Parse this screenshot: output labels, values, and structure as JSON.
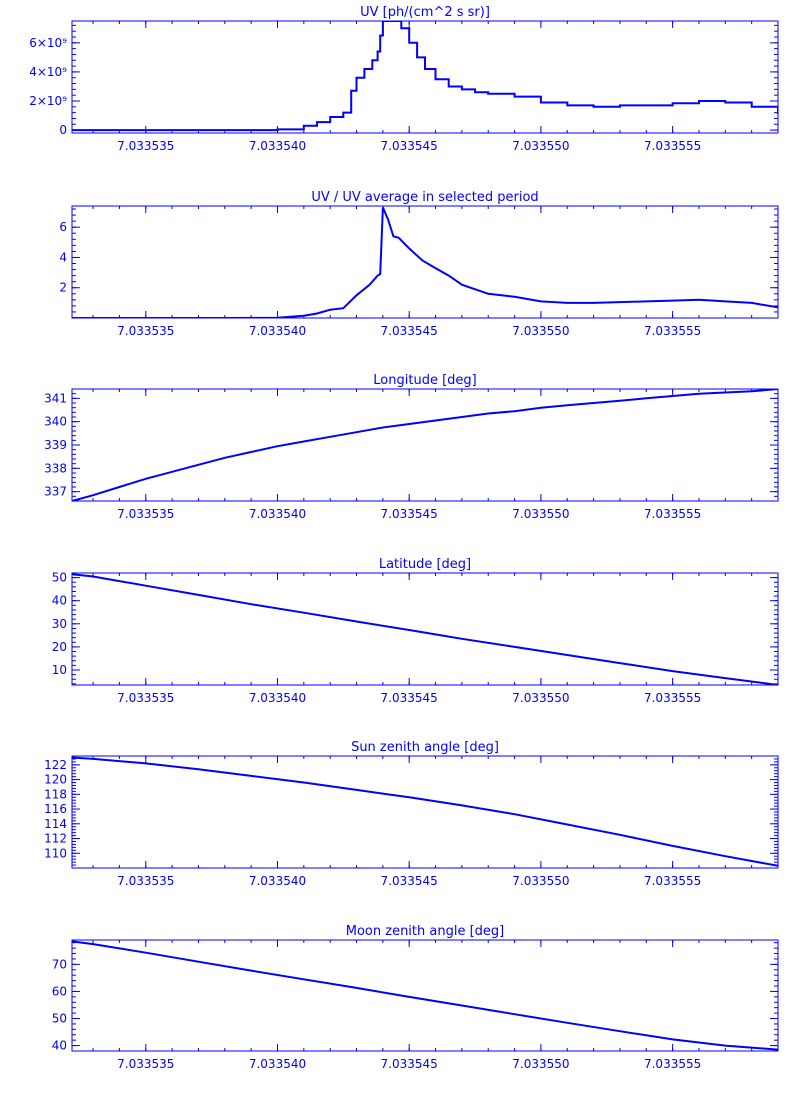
{
  "colors": {
    "line": "#0000ff",
    "background": "#ffffff"
  },
  "chart_data": [
    {
      "type": "line",
      "title": "UV [ph/(cm^2 s sr)]",
      "xlabel": "",
      "ylabel": "",
      "xlim": [
        7.0335322,
        7.033559
      ],
      "ylim": [
        -200000000,
        7500000000
      ],
      "x_ticks": [
        7.033535,
        7.03354,
        7.033545,
        7.03355,
        7.033555
      ],
      "x_tick_labels": [
        "7.033535",
        "7.033540",
        "7.033545",
        "7.033550",
        "7.033555"
      ],
      "y_ticks": [
        0,
        2000000000,
        4000000000,
        6000000000
      ],
      "y_tick_labels": [
        "0",
        "2×10⁹",
        "4×10⁹",
        "6×10⁹"
      ],
      "line_style": "step",
      "series": [
        {
          "x": [
            7.0335322,
            7.033538,
            7.03354,
            7.033541,
            7.0335415,
            7.033542,
            7.0335425,
            7.0335428,
            7.033543,
            7.0335433,
            7.0335436,
            7.0335438,
            7.0335439,
            7.033544,
            7.0335443,
            7.0335445,
            7.0335447,
            7.033545,
            7.0335453,
            7.0335456,
            7.033546,
            7.0335465,
            7.033547,
            7.0335475,
            7.033548,
            7.033549,
            7.03355,
            7.033551,
            7.033552,
            7.033553,
            7.033554,
            7.033555,
            7.033556,
            7.033557,
            7.033558,
            7.033559
          ],
          "y": [
            0,
            0,
            50000000,
            300000000,
            550000000,
            900000000,
            1200000000,
            2700000000,
            3600000000,
            4200000000,
            4800000000,
            5400000000,
            6500000000,
            7500000000,
            7500000000,
            7500000000,
            7000000000,
            6000000000,
            5000000000,
            4200000000,
            3500000000,
            3000000000,
            2800000000,
            2600000000,
            2500000000,
            2300000000,
            1900000000,
            1700000000,
            1600000000,
            1700000000,
            1700000000,
            1850000000,
            2000000000,
            1900000000,
            1600000000,
            1100000000
          ]
        }
      ],
      "grid": false
    },
    {
      "type": "line",
      "title": "UV / UV average in selected period",
      "xlabel": "",
      "ylabel": "",
      "xlim": [
        7.0335322,
        7.033559
      ],
      "ylim": [
        0,
        7.4
      ],
      "x_ticks": [
        7.033535,
        7.03354,
        7.033545,
        7.03355,
        7.033555
      ],
      "x_tick_labels": [
        "7.033535",
        "7.033540",
        "7.033545",
        "7.033550",
        "7.033555"
      ],
      "y_ticks": [
        2,
        4,
        6
      ],
      "y_tick_labels": [
        "2",
        "4",
        "6"
      ],
      "series": [
        {
          "x": [
            7.0335322,
            7.033538,
            7.03354,
            7.033541,
            7.0335415,
            7.033542,
            7.0335425,
            7.033543,
            7.0335435,
            7.0335438,
            7.0335439,
            7.033544,
            7.0335442,
            7.0335444,
            7.0335446,
            7.033545,
            7.0335455,
            7.033546,
            7.0335465,
            7.033547,
            7.033548,
            7.033549,
            7.03355,
            7.033551,
            7.033552,
            7.033553,
            7.033554,
            7.033555,
            7.033556,
            7.033557,
            7.033558,
            7.033559
          ],
          "y": [
            0,
            0,
            0.02,
            0.15,
            0.3,
            0.55,
            0.65,
            1.5,
            2.2,
            2.8,
            2.9,
            7.3,
            6.5,
            5.4,
            5.3,
            4.6,
            3.8,
            3.3,
            2.8,
            2.2,
            1.6,
            1.4,
            1.1,
            1.0,
            1.0,
            1.05,
            1.1,
            1.15,
            1.2,
            1.1,
            1.0,
            0.7
          ]
        }
      ],
      "grid": false
    },
    {
      "type": "line",
      "title": "Longitude [deg]",
      "xlabel": "",
      "ylabel": "",
      "xlim": [
        7.0335322,
        7.033559
      ],
      "ylim": [
        336.6,
        341.4
      ],
      "x_ticks": [
        7.033535,
        7.03354,
        7.033545,
        7.03355,
        7.033555
      ],
      "x_tick_labels": [
        "7.033535",
        "7.033540",
        "7.033545",
        "7.033550",
        "7.033555"
      ],
      "y_ticks": [
        337,
        338,
        339,
        340,
        341
      ],
      "y_tick_labels": [
        "337",
        "338",
        "339",
        "340",
        "341"
      ],
      "series": [
        {
          "x": [
            7.0335322,
            7.033533,
            7.033534,
            7.033535,
            7.033536,
            7.033537,
            7.033538,
            7.033539,
            7.03354,
            7.033541,
            7.033542,
            7.033543,
            7.033544,
            7.033545,
            7.033546,
            7.033547,
            7.033548,
            7.033549,
            7.03355,
            7.033551,
            7.033552,
            7.033553,
            7.033554,
            7.033555,
            7.033556,
            7.033557,
            7.033558,
            7.033559
          ],
          "y": [
            336.6,
            336.85,
            337.2,
            337.55,
            337.85,
            338.15,
            338.45,
            338.7,
            338.95,
            339.15,
            339.35,
            339.55,
            339.75,
            339.9,
            340.05,
            340.2,
            340.35,
            340.45,
            340.6,
            340.7,
            340.8,
            340.9,
            341.0,
            341.1,
            341.2,
            341.25,
            341.3,
            341.4
          ]
        }
      ],
      "grid": false
    },
    {
      "type": "line",
      "title": "Latitude [deg]",
      "xlabel": "",
      "ylabel": "",
      "xlim": [
        7.0335322,
        7.033559
      ],
      "ylim": [
        3.5,
        52
      ],
      "x_ticks": [
        7.033535,
        7.03354,
        7.033545,
        7.03355,
        7.033555
      ],
      "x_tick_labels": [
        "7.033535",
        "7.033540",
        "7.033545",
        "7.033550",
        "7.033555"
      ],
      "y_ticks": [
        10,
        20,
        30,
        40,
        50
      ],
      "y_tick_labels": [
        "10",
        "20",
        "30",
        "40",
        "50"
      ],
      "series": [
        {
          "x": [
            7.0335322,
            7.033533,
            7.033535,
            7.033537,
            7.033539,
            7.033541,
            7.033543,
            7.033545,
            7.033547,
            7.033549,
            7.033551,
            7.033553,
            7.033555,
            7.033557,
            7.033559
          ],
          "y": [
            51.5,
            50.5,
            46.5,
            42.5,
            38.5,
            34.8,
            31.0,
            27.3,
            23.5,
            20.0,
            16.5,
            13.0,
            9.5,
            6.5,
            3.5
          ]
        }
      ],
      "grid": false
    },
    {
      "type": "line",
      "title": "Sun zenith angle [deg]",
      "xlabel": "",
      "ylabel": "",
      "xlim": [
        7.0335322,
        7.033559
      ],
      "ylim": [
        108,
        123.2
      ],
      "x_ticks": [
        7.033535,
        7.03354,
        7.033545,
        7.03355,
        7.033555
      ],
      "x_tick_labels": [
        "7.033535",
        "7.033540",
        "7.033545",
        "7.033550",
        "7.033555"
      ],
      "y_ticks": [
        110,
        112,
        114,
        116,
        118,
        120,
        122
      ],
      "y_tick_labels": [
        "110",
        "112",
        "114",
        "116",
        "118",
        "120",
        "122"
      ],
      "series": [
        {
          "x": [
            7.0335322,
            7.033533,
            7.033535,
            7.033537,
            7.033539,
            7.033541,
            7.033543,
            7.033545,
            7.033547,
            7.033549,
            7.033551,
            7.033553,
            7.033555,
            7.033557,
            7.033559
          ],
          "y": [
            123.0,
            122.8,
            122.2,
            121.4,
            120.5,
            119.6,
            118.6,
            117.6,
            116.5,
            115.3,
            113.9,
            112.5,
            111.0,
            109.6,
            108.3
          ]
        }
      ],
      "grid": false
    },
    {
      "type": "line",
      "title": "Moon zenith angle [deg]",
      "xlabel": "",
      "ylabel": "",
      "xlim": [
        7.0335322,
        7.033559
      ],
      "ylim": [
        38,
        79
      ],
      "x_ticks": [
        7.033535,
        7.03354,
        7.033545,
        7.03355,
        7.033555
      ],
      "x_tick_labels": [
        "7.033535",
        "7.033540",
        "7.033545",
        "7.033550",
        "7.033555"
      ],
      "y_ticks": [
        40,
        50,
        60,
        70
      ],
      "y_tick_labels": [
        "40",
        "50",
        "60",
        "70"
      ],
      "series": [
        {
          "x": [
            7.0335322,
            7.033533,
            7.033535,
            7.033537,
            7.033539,
            7.033541,
            7.033543,
            7.033545,
            7.033547,
            7.033549,
            7.033551,
            7.033553,
            7.033555,
            7.033557,
            7.033559
          ],
          "y": [
            78.5,
            77.5,
            74.3,
            71.0,
            67.7,
            64.5,
            61.3,
            58.0,
            54.8,
            51.6,
            48.4,
            45.3,
            42.3,
            40.0,
            38.5
          ]
        }
      ],
      "grid": false
    }
  ]
}
